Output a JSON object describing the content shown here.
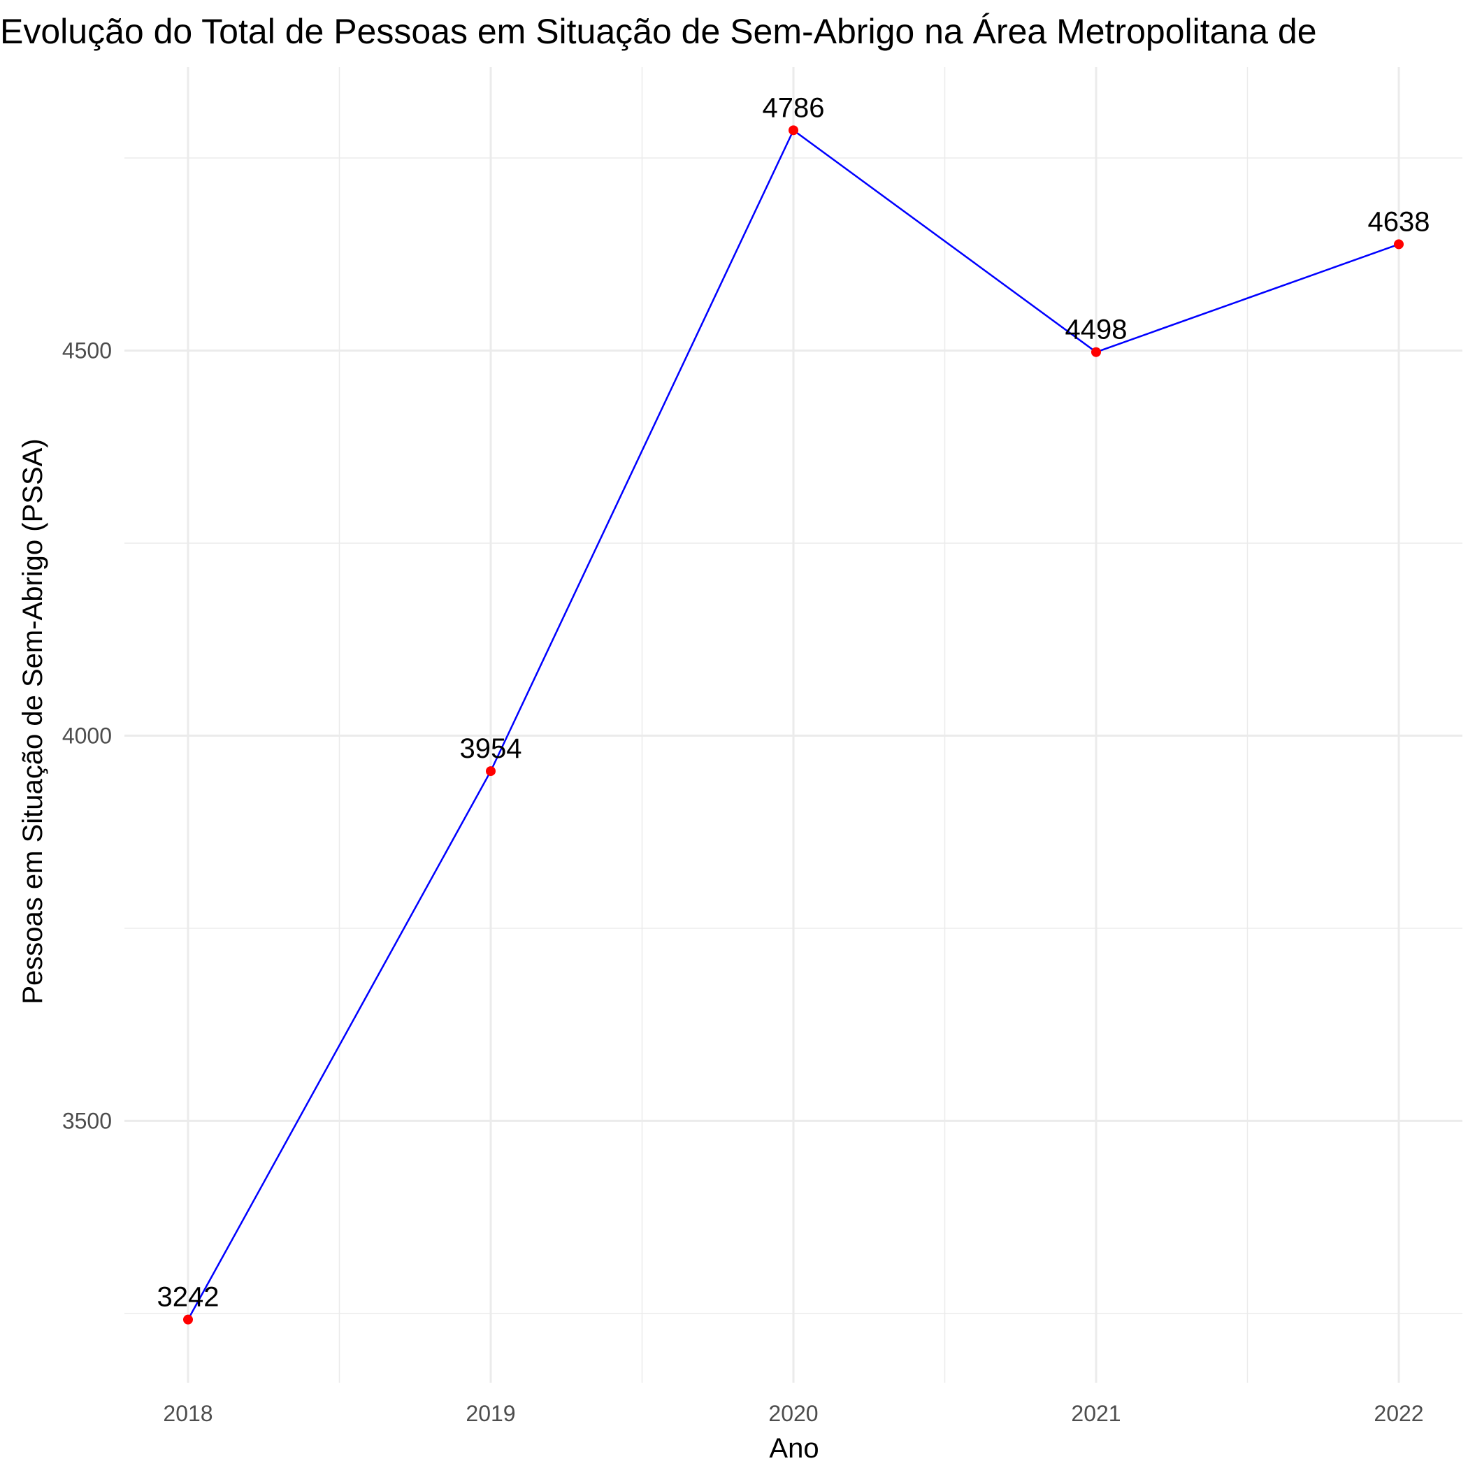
{
  "chart_data": {
    "type": "line",
    "title": "Evolução do Total de Pessoas em Situação de Sem-Abrigo na Área Metropolitana de",
    "xlabel": "Ano",
    "ylabel": "Pessoas em Situação de Sem-Abrigo (PSSA)",
    "x": [
      "2018",
      "2019",
      "2020",
      "2021",
      "2022"
    ],
    "series": [
      {
        "values": [
          3242,
          3954,
          4786,
          4498,
          4638
        ]
      }
    ],
    "data_labels": [
      "3242",
      "3954",
      "4786",
      "4498",
      "4638"
    ],
    "y_ticks": [
      3500,
      4000,
      4500
    ],
    "y_tick_labels": [
      "3500",
      "4000",
      "4500"
    ],
    "ylim": [
      3160,
      4868
    ],
    "grid": true,
    "legend": "none",
    "colors": {
      "line": "#0000ff",
      "points": "#ff0000",
      "grid": "#ebebeb"
    }
  }
}
